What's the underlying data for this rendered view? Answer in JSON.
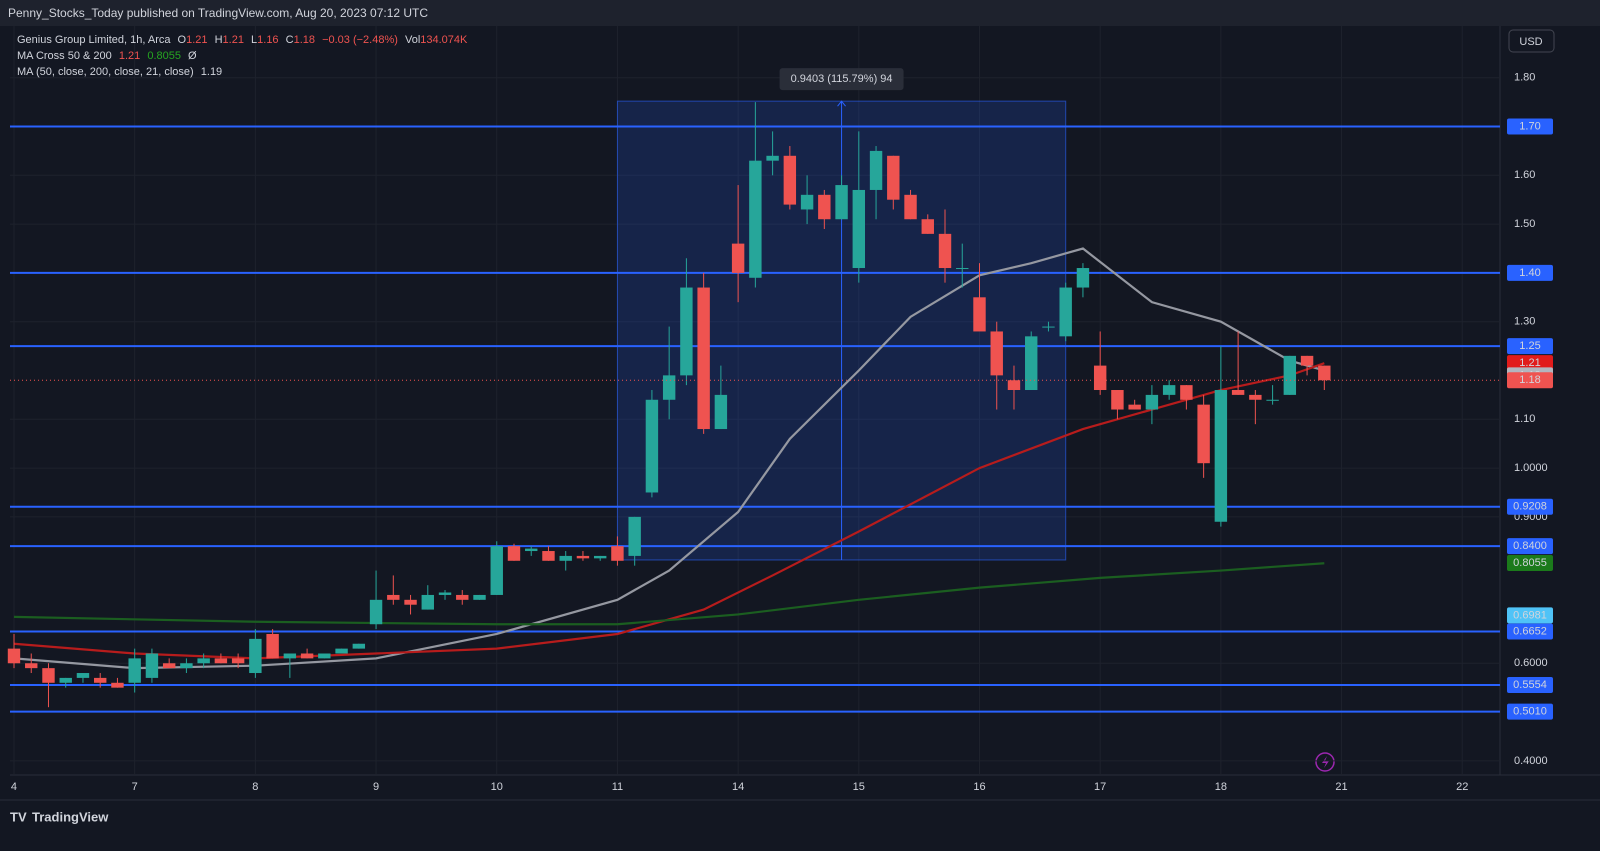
{
  "header": {
    "published": "Penny_Stocks_Today published on TradingView.com, Aug 20, 2023 07:12 UTC",
    "currency": "USD"
  },
  "footer": {
    "brand": "TradingView"
  },
  "chart_data": {
    "type": "candlestick",
    "legend": {
      "symbol": "Genius Group Limited, 1h, Arca",
      "ohlc": [
        {
          "k": "O",
          "v": "1.21"
        },
        {
          "k": "H",
          "v": "1.21"
        },
        {
          "k": "L",
          "v": "1.16"
        },
        {
          "k": "C",
          "v": "1.18"
        }
      ],
      "change": "−0.03 (−2.48%)",
      "vol_label": "Vol",
      "vol": "134.074K",
      "ma_cross": "MA Cross 50 & 200",
      "ma_cross_values": [
        "1.21",
        "0.8055",
        "Ø"
      ],
      "ma": "MA (50, close, 200, close, 21, close)",
      "ma_value": "1.19"
    },
    "up_color": "#26a69a",
    "down_color": "#ef5350",
    "open": [
      0.63,
      0.6,
      0.59,
      0.56,
      0.57,
      0.57,
      0.56,
      0.56,
      0.57,
      0.6,
      0.59,
      0.6,
      0.61,
      0.61,
      0.58,
      0.66,
      0.61,
      0.62,
      0.61,
      0.62,
      0.63,
      0.68,
      0.74,
      0.73,
      0.71,
      0.74,
      0.74,
      0.73,
      0.74,
      0.84,
      0.83,
      0.83,
      0.81,
      0.82,
      0.815,
      0.84,
      0.82,
      0.95,
      1.14,
      1.19,
      1.37,
      1.08,
      1.46,
      1.39,
      1.63,
      1.64,
      1.53,
      1.56,
      1.51,
      1.41,
      1.57,
      1.64,
      1.56,
      1.51,
      1.48,
      1.41,
      1.35,
      1.28,
      1.18,
      1.16,
      1.29,
      1.27,
      1.37,
      1.21,
      1.16,
      1.13,
      1.12,
      1.15,
      1.17,
      1.13,
      0.89,
      1.16,
      1.15,
      1.14,
      1.15,
      1.23,
      1.21
    ],
    "high": [
      0.66,
      0.62,
      0.6,
      0.57,
      0.58,
      0.58,
      0.57,
      0.63,
      0.63,
      0.61,
      0.61,
      0.62,
      0.62,
      0.62,
      0.67,
      0.67,
      0.62,
      0.63,
      0.62,
      0.63,
      0.64,
      0.79,
      0.78,
      0.74,
      0.76,
      0.75,
      0.75,
      0.74,
      0.85,
      0.845,
      0.84,
      0.84,
      0.83,
      0.83,
      0.82,
      0.86,
      0.9,
      1.16,
      1.29,
      1.43,
      1.4,
      1.21,
      1.58,
      1.75,
      1.69,
      1.66,
      1.6,
      1.57,
      1.6,
      1.69,
      1.66,
      1.64,
      1.57,
      1.52,
      1.53,
      1.46,
      1.42,
      1.3,
      1.21,
      1.28,
      1.3,
      1.38,
      1.42,
      1.28,
      1.16,
      1.14,
      1.17,
      1.18,
      1.17,
      1.15,
      1.25,
      1.28,
      1.16,
      1.17,
      1.23,
      1.23,
      1.21
    ],
    "low": [
      0.59,
      0.58,
      0.51,
      0.55,
      0.56,
      0.55,
      0.55,
      0.54,
      0.56,
      0.59,
      0.58,
      0.59,
      0.6,
      0.59,
      0.57,
      0.61,
      0.57,
      0.61,
      0.61,
      0.62,
      0.63,
      0.67,
      0.72,
      0.7,
      0.71,
      0.73,
      0.72,
      0.73,
      0.74,
      0.81,
      0.82,
      0.81,
      0.79,
      0.81,
      0.81,
      0.8,
      0.8,
      0.94,
      1.1,
      1.17,
      1.07,
      1.08,
      1.34,
      1.37,
      1.6,
      1.53,
      1.5,
      1.49,
      1.51,
      1.38,
      1.51,
      1.53,
      1.51,
      1.48,
      1.38,
      1.37,
      1.29,
      1.12,
      1.12,
      1.16,
      1.28,
      1.26,
      1.35,
      1.15,
      1.1,
      1.12,
      1.09,
      1.14,
      1.12,
      0.98,
      0.88,
      1.15,
      1.09,
      1.13,
      1.15,
      1.19,
      1.16
    ],
    "close": [
      0.6,
      0.59,
      0.56,
      0.57,
      0.58,
      0.56,
      0.55,
      0.61,
      0.62,
      0.59,
      0.6,
      0.61,
      0.6,
      0.6,
      0.65,
      0.61,
      0.62,
      0.61,
      0.62,
      0.63,
      0.64,
      0.73,
      0.73,
      0.72,
      0.74,
      0.745,
      0.73,
      0.74,
      0.84,
      0.81,
      0.835,
      0.81,
      0.82,
      0.815,
      0.82,
      0.81,
      0.9,
      1.14,
      1.19,
      1.37,
      1.08,
      1.15,
      1.4,
      1.63,
      1.64,
      1.54,
      1.56,
      1.51,
      1.58,
      1.57,
      1.65,
      1.55,
      1.51,
      1.48,
      1.41,
      1.41,
      1.28,
      1.19,
      1.16,
      1.27,
      1.29,
      1.37,
      1.41,
      1.16,
      1.12,
      1.12,
      1.15,
      1.17,
      1.14,
      1.01,
      1.16,
      1.15,
      1.14,
      1.14,
      1.23,
      1.21,
      1.18
    ],
    "ma_lines": [
      {
        "color": "#9598a1",
        "x": [
          0,
          7,
          14,
          21,
          28,
          35,
          38,
          42,
          45,
          49,
          52,
          56,
          59,
          62,
          66,
          70,
          74,
          76
        ],
        "values": [
          0.61,
          0.59,
          0.595,
          0.61,
          0.66,
          0.73,
          0.79,
          0.91,
          1.06,
          1.2,
          1.31,
          1.395,
          1.42,
          1.45,
          1.34,
          1.3,
          1.22,
          1.2
        ]
      },
      {
        "color": "#b71c1c",
        "x": [
          0,
          7,
          14,
          21,
          28,
          35,
          40,
          44,
          49,
          56,
          62,
          66,
          70,
          74,
          76
        ],
        "values": [
          0.64,
          0.62,
          0.61,
          0.62,
          0.63,
          0.66,
          0.71,
          0.78,
          0.87,
          1.0,
          1.08,
          1.12,
          1.16,
          1.19,
          1.215
        ]
      },
      {
        "color": "#1b5e20",
        "x": [
          0,
          14,
          28,
          35,
          42,
          49,
          56,
          63,
          70,
          76
        ],
        "values": [
          0.695,
          0.685,
          0.68,
          0.68,
          0.7,
          0.73,
          0.755,
          0.775,
          0.79,
          0.805
        ]
      }
    ],
    "levels": [
      {
        "value": 1.7,
        "label": "1.70"
      },
      {
        "value": 1.4,
        "label": "1.40"
      },
      {
        "value": 1.25,
        "label": "1.25"
      },
      {
        "value": 0.9208,
        "label": "0.9208"
      },
      {
        "value": 0.84,
        "label": "0.8400"
      },
      {
        "value": 0.6652,
        "label": "0.6652"
      },
      {
        "value": 0.5554,
        "label": "0.5554"
      },
      {
        "value": 0.501,
        "label": "0.5010"
      }
    ],
    "level_color": "#2962ff",
    "axis_tags": [
      {
        "value": 1.215,
        "label": "1.21",
        "color": "#e11b1b"
      },
      {
        "value": 1.19,
        "label": "1.19",
        "color": "#b2b5be"
      },
      {
        "value": 1.18,
        "label": "1.18",
        "color": "#ef5350",
        "line": "dotted"
      },
      {
        "value": 0.8055,
        "label": "0.8055",
        "color": "#1b7a1b"
      },
      {
        "value": 0.6981,
        "label": "0.6981",
        "color": "#4fc3f7"
      }
    ],
    "measure": {
      "x": [
        35,
        61
      ],
      "y": [
        0.8117,
        1.752
      ],
      "label": "0.9403 (115.79%) 94",
      "color": "#2962ff"
    },
    "xlim": [
      -0.232,
      86.19
    ],
    "ylim": [
      0.371,
      1.906
    ],
    "xticks": [
      {
        "value": 0,
        "label": "4"
      },
      {
        "value": 7,
        "label": "7"
      },
      {
        "value": 14,
        "label": "8"
      },
      {
        "value": 21,
        "label": "9"
      },
      {
        "value": 28,
        "label": "10"
      },
      {
        "value": 35,
        "label": "11"
      },
      {
        "value": 42,
        "label": "14"
      },
      {
        "value": 49,
        "label": "15"
      },
      {
        "value": 56,
        "label": "16"
      },
      {
        "value": 63,
        "label": "17"
      },
      {
        "value": 70,
        "label": "18"
      },
      {
        "value": 77,
        "label": "21"
      },
      {
        "value": 84,
        "label": "22"
      }
    ],
    "yticks": [
      {
        "value": 1.8,
        "label": "1.80"
      },
      {
        "value": 1.6,
        "label": "1.60"
      },
      {
        "value": 1.5,
        "label": "1.50"
      },
      {
        "value": 1.3,
        "label": "1.30"
      },
      {
        "value": 1.1,
        "label": "1.10"
      },
      {
        "value": 1.0,
        "label": "1.0000"
      },
      {
        "value": 0.9,
        "label": "0.9000"
      },
      {
        "value": 0.6,
        "label": "0.6000"
      },
      {
        "value": 0.4,
        "label": "0.4000"
      }
    ],
    "grid": true
  }
}
